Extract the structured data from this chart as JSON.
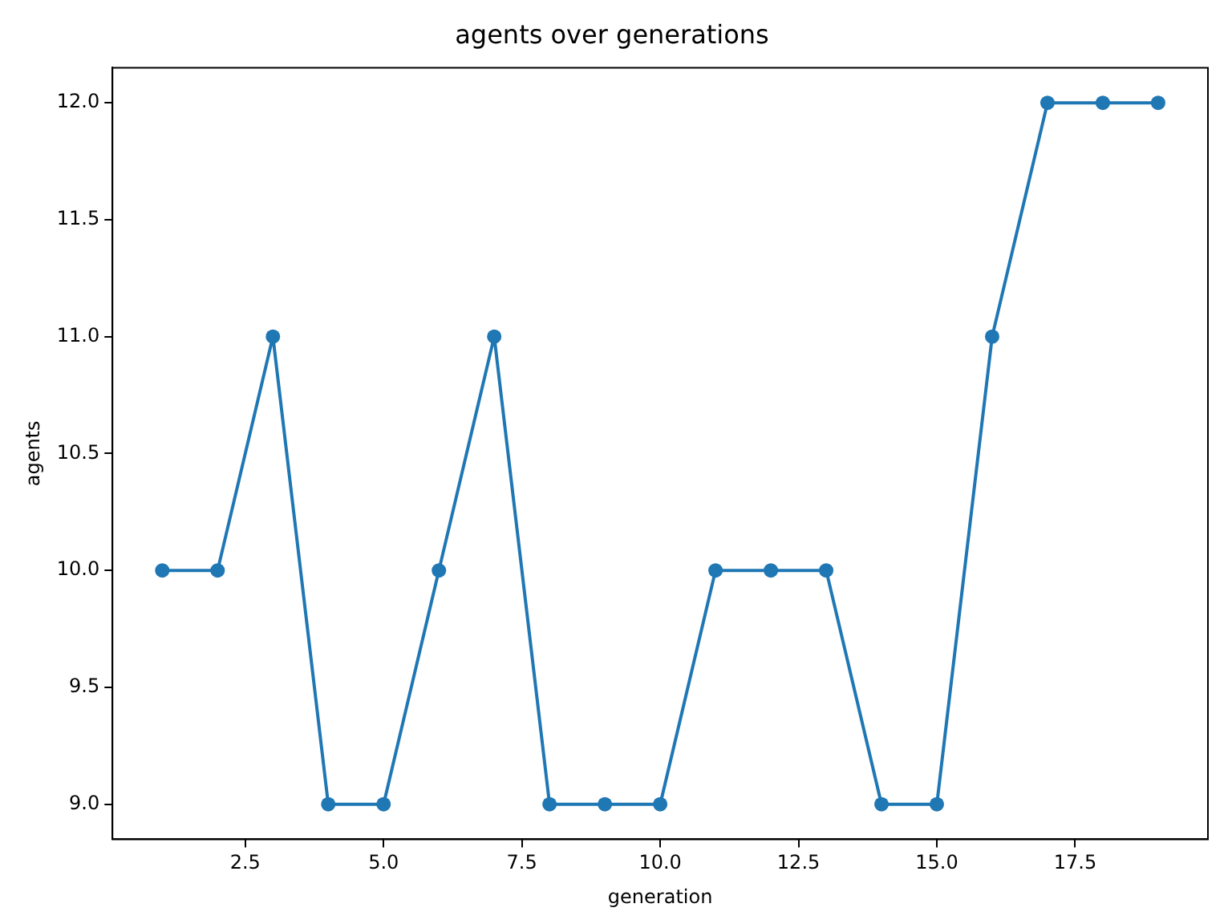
{
  "chart_data": {
    "type": "line",
    "title": "agents over generations",
    "xlabel": "generation",
    "ylabel": "agents",
    "x": [
      1,
      2,
      3,
      4,
      5,
      6,
      7,
      8,
      9,
      10,
      11,
      12,
      13,
      14,
      15,
      16,
      17,
      18,
      19
    ],
    "series": [
      {
        "color": "#1f77b4",
        "values": [
          10,
          10,
          11,
          9,
          9,
          10,
          11,
          9,
          9,
          9,
          10,
          10,
          10,
          9,
          9,
          11,
          12,
          12,
          12
        ]
      }
    ],
    "xlim": [
      0.1,
      19.9
    ],
    "ylim": [
      8.85,
      12.15
    ],
    "xticks": [
      {
        "value": 2.5,
        "label": "2.5"
      },
      {
        "value": 5,
        "label": "5.0"
      },
      {
        "value": 7.5,
        "label": "7.5"
      },
      {
        "value": 10,
        "label": "10.0"
      },
      {
        "value": 12.5,
        "label": "12.5"
      },
      {
        "value": 15,
        "label": "15.0"
      },
      {
        "value": 17.5,
        "label": "17.5"
      }
    ],
    "yticks": [
      {
        "value": 9,
        "label": "9.0"
      },
      {
        "value": 9.5,
        "label": "9.5"
      },
      {
        "value": 10,
        "label": "10.0"
      },
      {
        "value": 10.5,
        "label": "10.5"
      },
      {
        "value": 11,
        "label": "11.0"
      },
      {
        "value": 11.5,
        "label": "11.5"
      },
      {
        "value": 12,
        "label": "12.0"
      }
    ],
    "grid": false,
    "legend": false,
    "marker": "circle",
    "line_style": "solid"
  }
}
